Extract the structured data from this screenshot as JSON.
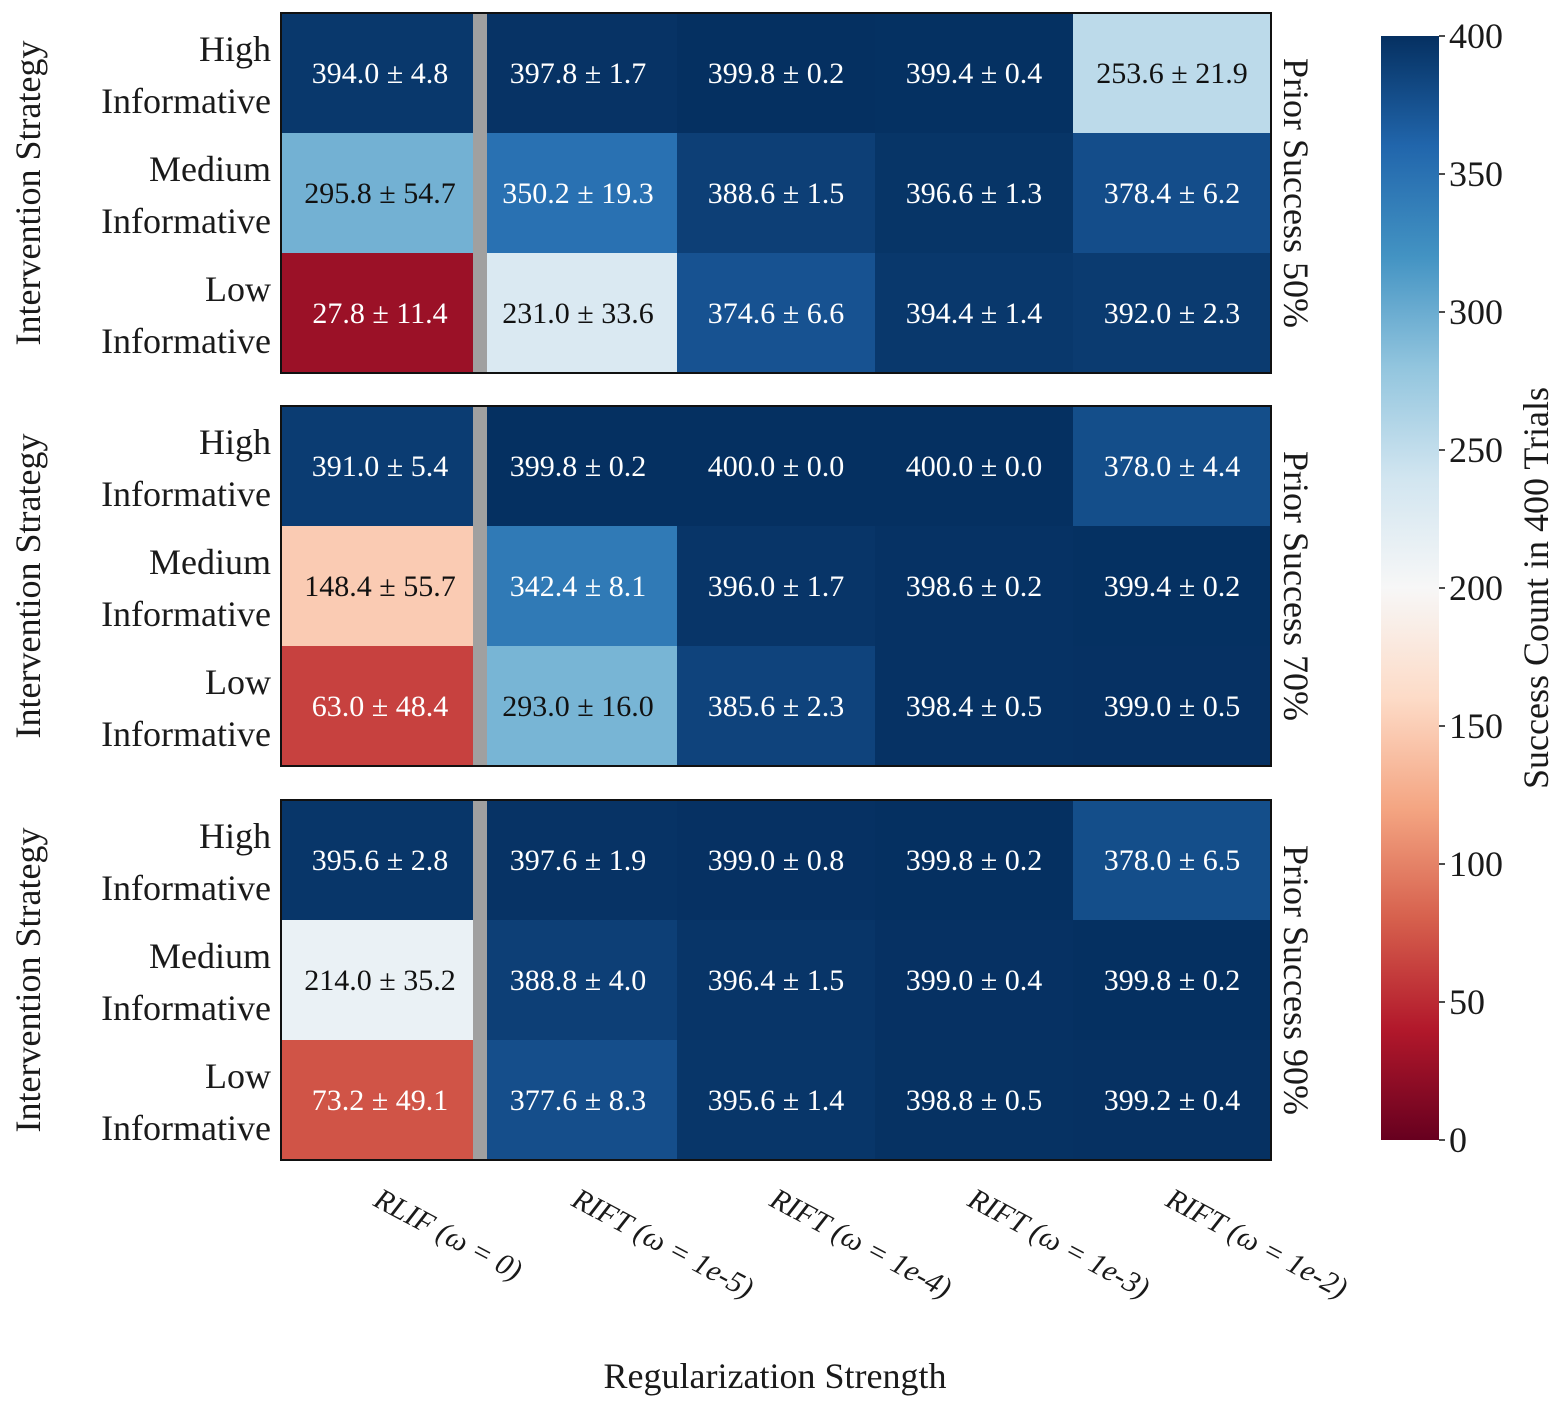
{
  "chart_data": {
    "type": "heatmap",
    "xlabel": "Regularization Strength",
    "ylabel": "Intervention Strategy",
    "columns": [
      "RLIF (ω = 0)",
      "RIFT (ω = 1e-5)",
      "RIFT (ω = 1e-4)",
      "RIFT (ω = 1e-3)",
      "RIFT (ω = 1e-2)"
    ],
    "rows": [
      [
        "High",
        "Informative"
      ],
      [
        "Medium",
        "Informative"
      ],
      [
        "Low",
        "Informative"
      ]
    ],
    "panels": [
      {
        "label": "Prior Success 50%",
        "values": [
          [
            394.0,
            397.8,
            399.8,
            399.4,
            253.6
          ],
          [
            295.8,
            350.2,
            388.6,
            396.6,
            378.4
          ],
          [
            27.8,
            231.0,
            374.6,
            394.4,
            392.0
          ]
        ],
        "errors": [
          [
            4.8,
            1.7,
            0.2,
            0.4,
            21.9
          ],
          [
            54.7,
            19.3,
            1.5,
            1.3,
            6.2
          ],
          [
            11.4,
            33.6,
            6.6,
            1.4,
            2.3
          ]
        ]
      },
      {
        "label": "Prior Success 70%",
        "values": [
          [
            391.0,
            399.8,
            400.0,
            400.0,
            378.0
          ],
          [
            148.4,
            342.4,
            396.0,
            398.6,
            399.4
          ],
          [
            63.0,
            293.0,
            385.6,
            398.4,
            399.0
          ]
        ],
        "errors": [
          [
            5.4,
            0.2,
            0.0,
            0.0,
            4.4
          ],
          [
            55.7,
            8.1,
            1.7,
            0.2,
            0.2
          ],
          [
            48.4,
            16.0,
            2.3,
            0.5,
            0.5
          ]
        ]
      },
      {
        "label": "Prior Success 90%",
        "values": [
          [
            395.6,
            397.6,
            399.0,
            399.8,
            378.0
          ],
          [
            214.0,
            388.8,
            396.4,
            399.0,
            399.8
          ],
          [
            73.2,
            377.6,
            395.6,
            398.8,
            399.2
          ]
        ],
        "errors": [
          [
            2.8,
            1.9,
            0.8,
            0.2,
            6.5
          ],
          [
            35.2,
            4.0,
            1.5,
            0.4,
            0.2
          ],
          [
            49.1,
            8.3,
            1.4,
            0.5,
            0.4
          ]
        ]
      }
    ],
    "colorbar": {
      "label": "Success Count in 400 Trials",
      "range": [
        0,
        400
      ],
      "ticks": [
        0,
        50,
        100,
        150,
        200,
        250,
        300,
        350,
        400
      ],
      "colormap": "RdBu",
      "colors": [
        "#67001f",
        "#b2182b",
        "#d6604d",
        "#f4a582",
        "#fddbc7",
        "#f7f7f7",
        "#d1e5f0",
        "#92c5de",
        "#4393c3",
        "#2166ac",
        "#053061"
      ]
    },
    "separator_after_column": 0,
    "separator_color": "#a0a0a0"
  }
}
